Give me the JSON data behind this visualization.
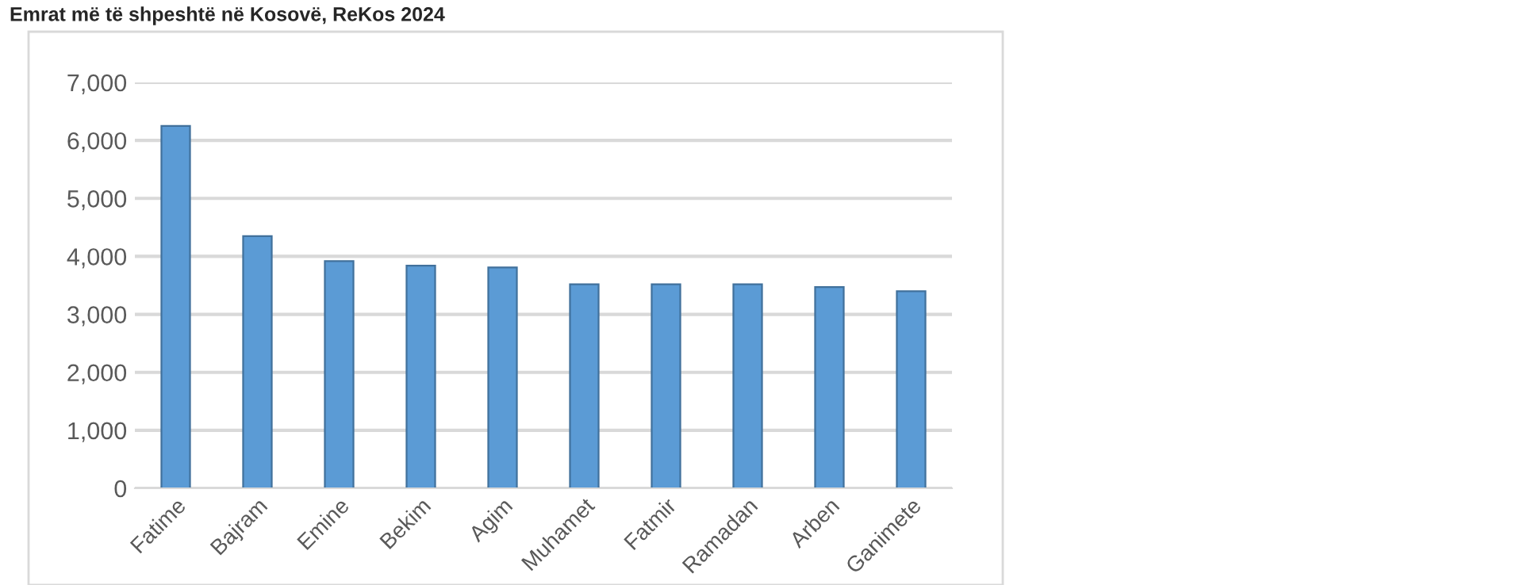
{
  "chart_data": {
    "type": "bar",
    "title": "Emrat më të shpeshtë në Kosovë, ReKos 2024",
    "categories": [
      "Fatime",
      "Bajram",
      "Emine",
      "Bekim",
      "Agim",
      "Muhamet",
      "Fatmir",
      "Ramadan",
      "Arben",
      "Ganimete"
    ],
    "values": [
      6250,
      4350,
      3920,
      3840,
      3810,
      3520,
      3520,
      3520,
      3470,
      3400
    ],
    "color": "#5b9bd5",
    "ylim": [
      0,
      7000
    ],
    "yticks": [
      {
        "value": 0,
        "label": "0"
      },
      {
        "value": 1000,
        "label": "1,000"
      },
      {
        "value": 2000,
        "label": "2,000"
      },
      {
        "value": 3000,
        "label": "3,000"
      },
      {
        "value": 4000,
        "label": "4,000"
      },
      {
        "value": 5000,
        "label": "5,000"
      },
      {
        "value": 6000,
        "label": "6,000"
      },
      {
        "value": 7000,
        "label": "7,000"
      }
    ],
    "grid": "y",
    "legend": false
  }
}
